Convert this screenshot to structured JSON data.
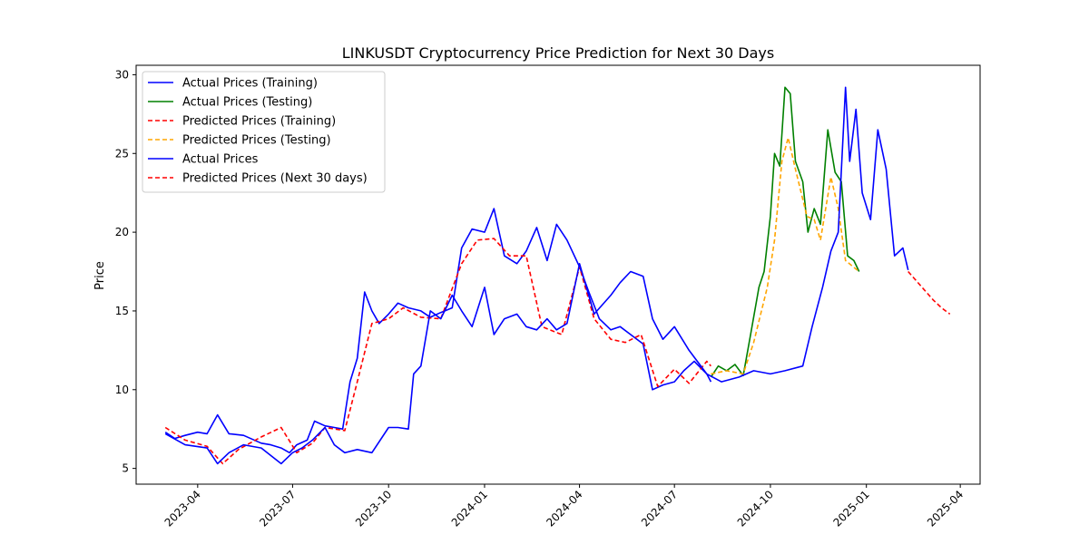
{
  "chart_data": {
    "type": "line",
    "title": "LINKUSDT Cryptocurrency Price Prediction for Next 30 Days",
    "xlabel": "",
    "ylabel": "Price",
    "x_range": [
      "2023-02-01",
      "2025-04-20"
    ],
    "ylim": [
      4,
      30.6
    ],
    "y_ticks": [
      5,
      10,
      15,
      20,
      25,
      30
    ],
    "x_ticks": [
      "2023-04",
      "2023-07",
      "2023-10",
      "2024-01",
      "2024-04",
      "2024-07",
      "2024-10",
      "2025-01",
      "2025-04"
    ],
    "grid": false,
    "legend_position": "top-left",
    "series": [
      {
        "name": "Actual Prices (Training)",
        "color": "#0000ff",
        "style": "solid",
        "points": [
          [
            "2023-03-01",
            7.3
          ],
          [
            "2023-03-10",
            6.9
          ],
          [
            "2023-03-20",
            7.1
          ],
          [
            "2023-04-01",
            7.3
          ],
          [
            "2023-04-10",
            7.2
          ],
          [
            "2023-04-20",
            8.4
          ],
          [
            "2023-05-01",
            7.2
          ],
          [
            "2023-05-15",
            7.1
          ],
          [
            "2023-06-01",
            6.6
          ],
          [
            "2023-06-10",
            6.5
          ],
          [
            "2023-06-20",
            6.3
          ],
          [
            "2023-06-28",
            6.0
          ],
          [
            "2023-07-05",
            6.5
          ],
          [
            "2023-07-15",
            6.8
          ],
          [
            "2023-07-22",
            8.0
          ],
          [
            "2023-08-01",
            7.7
          ],
          [
            "2023-08-10",
            7.6
          ],
          [
            "2023-08-18",
            7.5
          ],
          [
            "2023-08-25",
            10.5
          ],
          [
            "2023-09-01",
            12.0
          ],
          [
            "2023-09-08",
            16.2
          ],
          [
            "2023-09-15",
            15.0
          ],
          [
            "2023-09-22",
            14.2
          ],
          [
            "2023-10-01",
            14.8
          ],
          [
            "2023-10-10",
            15.5
          ],
          [
            "2023-10-20",
            15.2
          ],
          [
            "2023-11-01",
            15.0
          ],
          [
            "2023-11-10",
            14.6
          ],
          [
            "2023-11-20",
            14.9
          ],
          [
            "2023-12-01",
            15.2
          ],
          [
            "2023-12-10",
            19.0
          ],
          [
            "2023-12-20",
            20.2
          ],
          [
            "2024-01-01",
            20.0
          ],
          [
            "2024-01-10",
            21.5
          ],
          [
            "2024-01-20",
            18.5
          ],
          [
            "2024-02-01",
            18.0
          ],
          [
            "2024-02-10",
            18.8
          ],
          [
            "2024-02-20",
            20.3
          ],
          [
            "2024-03-01",
            18.2
          ],
          [
            "2024-03-10",
            20.5
          ],
          [
            "2024-03-20",
            19.5
          ],
          [
            "2024-04-01",
            17.8
          ],
          [
            "2024-04-10",
            16.2
          ],
          [
            "2024-04-20",
            14.5
          ],
          [
            "2024-05-01",
            13.8
          ],
          [
            "2024-05-10",
            14.0
          ],
          [
            "2024-05-20",
            13.5
          ],
          [
            "2024-06-01",
            12.9
          ],
          [
            "2024-06-10",
            10.0
          ],
          [
            "2024-06-20",
            10.3
          ],
          [
            "2024-07-01",
            10.5
          ],
          [
            "2024-07-10",
            11.2
          ],
          [
            "2024-07-20",
            11.8
          ],
          [
            "2024-08-01",
            11.0
          ],
          [
            "2024-08-05",
            10.5
          ]
        ]
      },
      {
        "name": "Actual Prices (Testing)",
        "color": "#008000",
        "style": "solid",
        "points": [
          [
            "2024-08-05",
            10.8
          ],
          [
            "2024-08-12",
            11.5
          ],
          [
            "2024-08-20",
            11.2
          ],
          [
            "2024-08-28",
            11.6
          ],
          [
            "2024-09-05",
            10.9
          ],
          [
            "2024-09-12",
            13.5
          ],
          [
            "2024-09-20",
            16.5
          ],
          [
            "2024-09-25",
            17.5
          ],
          [
            "2024-10-01",
            21.0
          ],
          [
            "2024-10-05",
            25.0
          ],
          [
            "2024-10-10",
            24.2
          ],
          [
            "2024-10-15",
            29.2
          ],
          [
            "2024-10-20",
            28.8
          ],
          [
            "2024-10-25",
            24.5
          ],
          [
            "2024-11-01",
            23.2
          ],
          [
            "2024-11-06",
            20.0
          ],
          [
            "2024-11-12",
            21.5
          ],
          [
            "2024-11-18",
            20.5
          ],
          [
            "2024-11-25",
            26.5
          ],
          [
            "2024-12-02",
            23.8
          ],
          [
            "2024-12-08",
            23.2
          ],
          [
            "2024-12-14",
            18.5
          ],
          [
            "2024-12-20",
            18.2
          ],
          [
            "2024-12-25",
            17.5
          ]
        ]
      },
      {
        "name": "Predicted Prices (Training)",
        "color": "#ff0000",
        "style": "dashed",
        "points": [
          [
            "2023-03-01",
            7.6
          ],
          [
            "2023-03-20",
            6.8
          ],
          [
            "2023-04-10",
            6.4
          ],
          [
            "2023-04-25",
            5.3
          ],
          [
            "2023-05-10",
            6.2
          ],
          [
            "2023-06-01",
            7.0
          ],
          [
            "2023-06-20",
            7.6
          ],
          [
            "2023-07-05",
            6.0
          ],
          [
            "2023-07-20",
            6.6
          ],
          [
            "2023-08-01",
            7.6
          ],
          [
            "2023-08-20",
            7.4
          ],
          [
            "2023-09-01",
            10.5
          ],
          [
            "2023-09-15",
            14.2
          ],
          [
            "2023-10-01",
            14.5
          ],
          [
            "2023-10-15",
            15.2
          ],
          [
            "2023-11-01",
            14.6
          ],
          [
            "2023-11-20",
            14.5
          ],
          [
            "2023-12-10",
            18.0
          ],
          [
            "2023-12-25",
            19.5
          ],
          [
            "2024-01-10",
            19.6
          ],
          [
            "2024-01-25",
            18.5
          ],
          [
            "2024-02-10",
            18.5
          ],
          [
            "2024-02-25",
            14.0
          ],
          [
            "2024-03-15",
            13.5
          ],
          [
            "2024-04-01",
            17.8
          ],
          [
            "2024-04-15",
            14.5
          ],
          [
            "2024-05-01",
            13.2
          ],
          [
            "2024-05-15",
            13.0
          ],
          [
            "2024-05-30",
            13.5
          ],
          [
            "2024-06-15",
            10.2
          ],
          [
            "2024-07-01",
            11.3
          ],
          [
            "2024-07-15",
            10.4
          ],
          [
            "2024-08-01",
            11.8
          ],
          [
            "2024-08-05",
            11.5
          ]
        ]
      },
      {
        "name": "Predicted Prices (Testing)",
        "color": "#ffa500",
        "style": "dashed",
        "points": [
          [
            "2024-08-05",
            11.0
          ],
          [
            "2024-08-20",
            11.2
          ],
          [
            "2024-09-05",
            11.0
          ],
          [
            "2024-09-15",
            13.0
          ],
          [
            "2024-09-28",
            16.5
          ],
          [
            "2024-10-05",
            19.5
          ],
          [
            "2024-10-12",
            24.5
          ],
          [
            "2024-10-18",
            26.0
          ],
          [
            "2024-10-25",
            24.0
          ],
          [
            "2024-11-05",
            21.0
          ],
          [
            "2024-11-12",
            20.8
          ],
          [
            "2024-11-18",
            19.5
          ],
          [
            "2024-11-28",
            23.5
          ],
          [
            "2024-12-05",
            21.5
          ],
          [
            "2024-12-12",
            18.2
          ],
          [
            "2024-12-25",
            17.5
          ]
        ]
      },
      {
        "name": "Actual Prices",
        "color": "#0000ff",
        "style": "solid",
        "points": [
          [
            "2023-03-01",
            7.2
          ],
          [
            "2023-03-20",
            6.5
          ],
          [
            "2023-04-10",
            6.3
          ],
          [
            "2023-04-20",
            5.3
          ],
          [
            "2023-05-01",
            6.0
          ],
          [
            "2023-05-15",
            6.5
          ],
          [
            "2023-06-01",
            6.3
          ],
          [
            "2023-06-20",
            5.3
          ],
          [
            "2023-07-01",
            6.0
          ],
          [
            "2023-07-10",
            6.3
          ],
          [
            "2023-07-20",
            6.8
          ],
          [
            "2023-08-01",
            7.6
          ],
          [
            "2023-08-10",
            6.5
          ],
          [
            "2023-08-20",
            6.0
          ],
          [
            "2023-09-01",
            6.2
          ],
          [
            "2023-09-15",
            6.0
          ],
          [
            "2023-10-01",
            7.6
          ],
          [
            "2023-10-10",
            7.6
          ],
          [
            "2023-10-20",
            7.5
          ],
          [
            "2023-10-25",
            11.0
          ],
          [
            "2023-11-01",
            11.5
          ],
          [
            "2023-11-10",
            15.0
          ],
          [
            "2023-11-20",
            14.5
          ],
          [
            "2023-12-01",
            16.0
          ],
          [
            "2023-12-10",
            15.0
          ],
          [
            "2023-12-20",
            14.0
          ],
          [
            "2024-01-01",
            16.5
          ],
          [
            "2024-01-10",
            13.5
          ],
          [
            "2024-01-20",
            14.5
          ],
          [
            "2024-02-01",
            14.8
          ],
          [
            "2024-02-10",
            14.0
          ],
          [
            "2024-02-20",
            13.8
          ],
          [
            "2024-03-01",
            14.5
          ],
          [
            "2024-03-10",
            13.8
          ],
          [
            "2024-03-20",
            14.2
          ],
          [
            "2024-04-01",
            18.0
          ],
          [
            "2024-04-15",
            14.8
          ],
          [
            "2024-05-01",
            16.0
          ],
          [
            "2024-05-10",
            16.8
          ],
          [
            "2024-05-20",
            17.5
          ],
          [
            "2024-06-01",
            17.2
          ],
          [
            "2024-06-10",
            14.5
          ],
          [
            "2024-06-20",
            13.2
          ],
          [
            "2024-07-01",
            14.0
          ],
          [
            "2024-07-15",
            12.5
          ],
          [
            "2024-08-01",
            11.0
          ],
          [
            "2024-08-15",
            10.5
          ],
          [
            "2024-09-01",
            10.8
          ],
          [
            "2024-09-15",
            11.2
          ],
          [
            "2024-10-01",
            11.0
          ],
          [
            "2024-10-15",
            11.2
          ],
          [
            "2024-11-01",
            11.5
          ],
          [
            "2024-11-10",
            14.0
          ],
          [
            "2024-11-20",
            16.5
          ],
          [
            "2024-11-28",
            18.8
          ],
          [
            "2024-12-05",
            20.0
          ],
          [
            "2024-12-12",
            29.2
          ],
          [
            "2024-12-16",
            24.5
          ],
          [
            "2024-12-22",
            27.8
          ],
          [
            "2024-12-28",
            22.5
          ],
          [
            "2025-01-05",
            20.8
          ],
          [
            "2025-01-12",
            26.5
          ],
          [
            "2025-01-20",
            24.0
          ],
          [
            "2025-01-28",
            18.5
          ],
          [
            "2025-02-05",
            19.0
          ],
          [
            "2025-02-10",
            17.6
          ]
        ]
      },
      {
        "name": "Predicted Prices (Next 30 days)",
        "color": "#ff0000",
        "style": "dashed",
        "points": [
          [
            "2025-02-10",
            17.5
          ],
          [
            "2025-02-18",
            16.9
          ],
          [
            "2025-02-26",
            16.3
          ],
          [
            "2025-03-06",
            15.7
          ],
          [
            "2025-03-14",
            15.2
          ],
          [
            "2025-03-22",
            14.8
          ]
        ]
      }
    ]
  }
}
